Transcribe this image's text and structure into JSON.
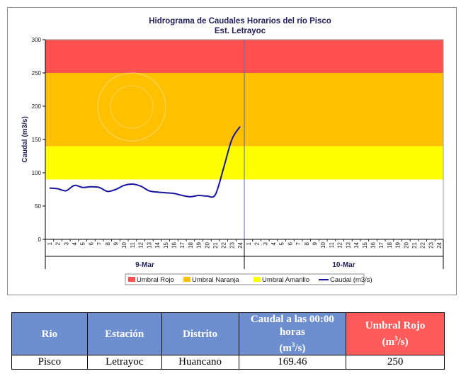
{
  "chart_data": {
    "type": "line",
    "title": "Hidrograma de Caudales Horarios del río Pisco",
    "subtitle": "Est. Letrayoc",
    "ylabel": "Caudal  (m3/s)",
    "ylim": [
      0,
      300
    ],
    "yticks": [
      "0",
      "50",
      "100",
      "150",
      "200",
      "250",
      "300"
    ],
    "hour_ticks": [
      "1",
      "2",
      "3",
      "4",
      "5",
      "6",
      "7",
      "8",
      "9",
      "10",
      "11",
      "12",
      "13",
      "14",
      "15",
      "16",
      "17",
      "18",
      "19",
      "20",
      "21",
      "22",
      "23",
      "24",
      "1",
      "2",
      "3",
      "4",
      "5",
      "6",
      "7",
      "8",
      "9",
      "10",
      "11",
      "12",
      "13",
      "14",
      "15",
      "16",
      "17",
      "18",
      "19",
      "20",
      "21",
      "22",
      "23",
      "24"
    ],
    "day_labels": [
      "9-Mar",
      "10-Mar"
    ],
    "thresholds": [
      {
        "name": "Umbral Rojo",
        "from": 250,
        "to": 300,
        "color": "#ff5050"
      },
      {
        "name": "Umbral Naranja",
        "from": 140,
        "to": 250,
        "color": "#ffc000"
      },
      {
        "name": "Umbral Amarillo",
        "from": 90,
        "to": 140,
        "color": "#ffff00"
      }
    ],
    "series": [
      {
        "name": "Caudal (m3/s)",
        "color": "#1515a0",
        "x": [
          1,
          2,
          3,
          4,
          5,
          6,
          7,
          8,
          9,
          10,
          11,
          12,
          13,
          14,
          15,
          16,
          17,
          18,
          19,
          20,
          21,
          22,
          23,
          24
        ],
        "values": [
          77,
          76,
          73,
          81,
          78,
          79,
          78,
          72,
          75,
          81,
          83,
          80,
          73,
          71,
          70,
          69,
          66,
          64,
          66,
          65,
          67,
          107,
          150,
          169.46
        ]
      }
    ],
    "legend": {
      "position": "bottom",
      "items": [
        {
          "label": "Umbral Rojo",
          "color": "#ff5050",
          "kind": "swatch"
        },
        {
          "label": "Umbral Naranja",
          "color": "#ffc000",
          "kind": "swatch"
        },
        {
          "label": "Umbral Amarillo",
          "color": "#ffff00",
          "kind": "swatch"
        },
        {
          "label": "Caudal (m3/s)",
          "color": "#1515a0",
          "kind": "line"
        }
      ]
    },
    "grid": false
  },
  "table": {
    "headers": {
      "rio": "Rio",
      "estacion": "Estación",
      "distrito": "Distrito",
      "caudal": "Caudal a las 00:00 horas",
      "caudal_unit": "(m",
      "caudal_unit_sup": "3",
      "caudal_unit_end": "/s)",
      "umbral": "Umbral Rojo",
      "umbral_unit": "(m",
      "umbral_unit_sup": "3",
      "umbral_unit_end": "/s)"
    },
    "row": {
      "rio": "Pisco",
      "estacion": "Letrayoc",
      "distrito": "Huancano",
      "caudal": "169.46",
      "umbral": "250"
    }
  }
}
